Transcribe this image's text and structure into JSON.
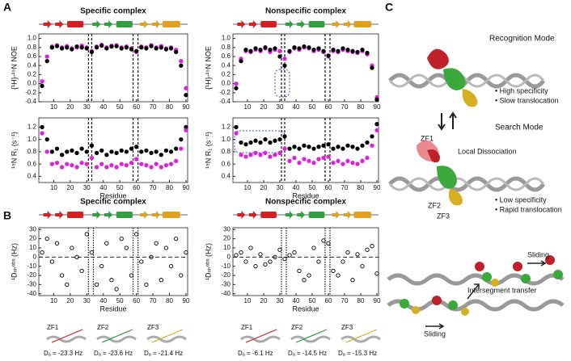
{
  "panel_labels": [
    "A",
    "B",
    "C"
  ],
  "chart_data": [
    {
      "type": "scatter",
      "title": "Specific complex",
      "ylabel": "{¹H}-¹⁵N NOE",
      "x": [
        3,
        6,
        9,
        12,
        15,
        18,
        21,
        24,
        27,
        30,
        33,
        36,
        39,
        42,
        45,
        48,
        51,
        54,
        57,
        60,
        63,
        66,
        69,
        72,
        75,
        78,
        81,
        84,
        87,
        90
      ],
      "series": [
        {
          "color": "#e020e0",
          "filled": true,
          "values": [
            0.05,
            0.6,
            0.82,
            0.85,
            0.8,
            0.83,
            0.78,
            0.8,
            0.84,
            0.8,
            0.72,
            0.82,
            0.86,
            0.8,
            0.84,
            0.85,
            0.8,
            0.82,
            0.78,
            0.7,
            0.82,
            0.8,
            0.85,
            0.8,
            0.83,
            0.78,
            0.8,
            0.75,
            0.5,
            -0.1
          ]
        },
        {
          "color": "#000000",
          "filled": true,
          "values": [
            -0.05,
            0.5,
            0.8,
            0.83,
            0.78,
            0.8,
            0.76,
            0.82,
            0.8,
            0.78,
            0.7,
            0.8,
            0.84,
            0.78,
            0.82,
            0.83,
            0.78,
            0.8,
            0.76,
            0.72,
            0.8,
            0.78,
            0.83,
            0.78,
            0.8,
            0.76,
            0.78,
            0.7,
            0.4,
            -0.25
          ]
        }
      ],
      "xlim": [
        1,
        91
      ],
      "xticks": [
        10,
        20,
        30,
        40,
        50,
        60,
        70,
        80,
        90
      ],
      "ylim": [
        -0.4,
        1.1
      ],
      "yticks": [
        -0.4,
        -0.2,
        {
          "value": 0,
          "label": "0.0"
        },
        0.2,
        0.4,
        0.6,
        0.8,
        {
          "value": 1,
          "label": "1.0"
        }
      ],
      "vlines": [
        31,
        33,
        58,
        61
      ],
      "vline_style": "dashed"
    },
    {
      "type": "scatter",
      "ylabel": "¹⁵N R₁ (s⁻¹)",
      "xlabel": "Residue",
      "x": [
        3,
        6,
        9,
        12,
        15,
        18,
        21,
        24,
        27,
        30,
        33,
        36,
        39,
        42,
        45,
        48,
        51,
        54,
        57,
        60,
        63,
        66,
        69,
        72,
        75,
        78,
        81,
        84,
        87,
        90
      ],
      "series": [
        {
          "color": "#000000",
          "filled": true,
          "values": [
            1.2,
            1.0,
            0.8,
            0.85,
            0.75,
            0.8,
            0.82,
            0.78,
            0.85,
            0.8,
            0.9,
            0.78,
            0.82,
            0.75,
            0.8,
            0.78,
            0.82,
            0.8,
            0.85,
            0.88,
            0.8,
            0.82,
            0.78,
            0.8,
            0.75,
            0.82,
            0.8,
            0.85,
            1.0,
            1.2
          ]
        },
        {
          "color": "#e020e0",
          "filled": true,
          "values": [
            1.1,
            0.8,
            0.6,
            0.62,
            0.55,
            0.6,
            0.58,
            0.55,
            0.62,
            0.6,
            0.7,
            0.55,
            0.6,
            0.55,
            0.58,
            0.55,
            0.6,
            0.58,
            0.62,
            0.68,
            0.6,
            0.58,
            0.55,
            0.6,
            0.55,
            0.58,
            0.6,
            0.65,
            0.85,
            1.15
          ]
        }
      ],
      "xlim": [
        1,
        91
      ],
      "xticks": [
        10,
        20,
        30,
        40,
        50,
        60,
        70,
        80,
        90
      ],
      "ylim": [
        0.3,
        1.35
      ],
      "yticks": [
        0.4,
        0.6,
        0.8,
        {
          "value": 1,
          "label": "1.0"
        },
        1.2
      ],
      "vlines": [
        31,
        33,
        58,
        61
      ],
      "vline_style": "dashed"
    },
    {
      "type": "scatter",
      "title": "Nonspecific complex",
      "ylabel": "{¹H}-¹⁵N NOE",
      "x": [
        3,
        6,
        9,
        12,
        15,
        18,
        21,
        24,
        27,
        30,
        33,
        36,
        39,
        42,
        45,
        48,
        51,
        54,
        57,
        60,
        63,
        66,
        69,
        72,
        75,
        78,
        81,
        84,
        87,
        90
      ],
      "series": [
        {
          "color": "#e020e0",
          "filled": true,
          "values": [
            0.0,
            0.55,
            0.72,
            0.7,
            0.75,
            0.72,
            0.78,
            0.7,
            0.75,
            0.72,
            0.55,
            0.7,
            0.78,
            0.75,
            0.8,
            0.78,
            0.72,
            0.75,
            0.7,
            0.6,
            0.72,
            0.7,
            0.75,
            0.72,
            0.7,
            0.68,
            0.72,
            0.65,
            0.4,
            -0.3
          ]
        },
        {
          "color": "#000000",
          "filled": true,
          "values": [
            -0.1,
            0.5,
            0.75,
            0.72,
            0.78,
            0.75,
            0.8,
            0.75,
            0.78,
            0.6,
            0.4,
            0.72,
            0.8,
            0.78,
            0.82,
            0.8,
            0.75,
            0.78,
            0.72,
            0.62,
            0.75,
            0.72,
            0.78,
            0.75,
            0.72,
            0.7,
            0.75,
            0.68,
            0.35,
            -0.35
          ]
        }
      ],
      "xlim": [
        1,
        91
      ],
      "xticks": [
        10,
        20,
        30,
        40,
        50,
        60,
        70,
        80,
        90
      ],
      "ylim": [
        -0.4,
        1.1
      ],
      "yticks": [
        -0.4,
        -0.2,
        {
          "value": 0,
          "label": "0.0"
        },
        0.2,
        0.4,
        0.6,
        0.8,
        {
          "value": 1,
          "label": "1.0"
        }
      ],
      "vlines": [
        31,
        33,
        58,
        61
      ],
      "vline_style": "dashed"
    },
    {
      "type": "scatter",
      "ylabel": "¹⁵N R₁ (s⁻¹)",
      "xlabel": "Residue",
      "x": [
        3,
        6,
        9,
        12,
        15,
        18,
        21,
        24,
        27,
        30,
        33,
        36,
        39,
        42,
        45,
        48,
        51,
        54,
        57,
        60,
        63,
        66,
        69,
        72,
        75,
        78,
        81,
        84,
        87,
        90
      ],
      "series": [
        {
          "color": "#000000",
          "filled": true,
          "values": [
            1.2,
            0.95,
            0.92,
            0.95,
            0.98,
            0.95,
            1.0,
            0.95,
            0.98,
            1.0,
            1.05,
            0.85,
            0.88,
            0.85,
            0.9,
            0.88,
            0.85,
            0.88,
            0.9,
            0.92,
            0.85,
            0.88,
            0.85,
            0.9,
            0.88,
            0.85,
            0.9,
            0.95,
            1.05,
            1.25
          ]
        },
        {
          "color": "#e020e0",
          "filled": true,
          "values": [
            1.1,
            0.75,
            0.72,
            0.75,
            0.78,
            0.75,
            0.78,
            0.72,
            0.75,
            0.78,
            0.85,
            0.65,
            0.7,
            0.62,
            0.68,
            0.65,
            0.62,
            0.68,
            0.7,
            0.72,
            0.62,
            0.65,
            0.6,
            0.65,
            0.62,
            0.6,
            0.65,
            0.7,
            0.9,
            1.15
          ]
        }
      ],
      "xlim": [
        1,
        91
      ],
      "xticks": [
        10,
        20,
        30,
        40,
        50,
        60,
        70,
        80,
        90
      ],
      "ylim": [
        0.3,
        1.35
      ],
      "yticks": [
        0.4,
        0.6,
        0.8,
        {
          "value": 1,
          "label": "1.0"
        },
        1.2
      ],
      "vlines": [
        31,
        33,
        58,
        61
      ],
      "vline_style": "dashed"
    },
    {
      "type": "scatter",
      "title": "Specific complex",
      "ylabel": "¹Dₙₕᵒᵇˢ (Hz)",
      "xlabel": "Residue",
      "x": [
        3,
        6,
        9,
        12,
        15,
        18,
        21,
        24,
        27,
        30,
        33,
        36,
        39,
        42,
        45,
        48,
        51,
        54,
        57,
        60,
        63,
        66,
        69,
        72,
        75,
        78,
        81,
        84,
        87,
        90
      ],
      "series": [
        {
          "color": "#000000",
          "filled": false,
          "values": [
            5,
            20,
            -5,
            15,
            -20,
            -30,
            10,
            0,
            -15,
            25,
            5,
            -30,
            -10,
            15,
            -25,
            -35,
            20,
            10,
            -20,
            25,
            -5,
            -30,
            0,
            15,
            -25,
            10,
            -10,
            20,
            -20,
            5
          ]
        }
      ],
      "xlim": [
        1,
        91
      ],
      "xticks": [
        10,
        20,
        30,
        40,
        50,
        60,
        70,
        80,
        90
      ],
      "ylim": [
        -42,
        32
      ],
      "yticks": [
        -40,
        -30,
        -20,
        -10,
        0,
        10,
        20,
        30
      ],
      "hline": 0,
      "vlines": [
        31,
        34,
        58,
        61
      ],
      "vline_style": "dotted"
    },
    {
      "type": "scatter",
      "title": "Nonspecific complex",
      "ylabel": "¹Dₙₕᵒᵇˢ (Hz)",
      "xlabel": "Residue",
      "x": [
        3,
        6,
        9,
        12,
        15,
        18,
        21,
        24,
        27,
        30,
        33,
        36,
        39,
        42,
        45,
        48,
        51,
        54,
        57,
        60,
        63,
        66,
        69,
        72,
        75,
        78,
        81,
        84,
        87,
        90
      ],
      "series": [
        {
          "color": "#000000",
          "filled": false,
          "values": [
            2,
            5,
            -5,
            10,
            -10,
            3,
            -8,
            -5,
            0,
            8,
            -2,
            2,
            5,
            -15,
            -25,
            -20,
            10,
            -5,
            18,
            15,
            -15,
            -20,
            -5,
            5,
            -25,
            3,
            -10,
            8,
            12,
            -18
          ]
        }
      ],
      "xlim": [
        1,
        91
      ],
      "xticks": [
        10,
        20,
        30,
        40,
        50,
        60,
        70,
        80,
        90
      ],
      "ylim": [
        -42,
        32
      ],
      "yticks": [
        -40,
        -30,
        -20,
        -10,
        0,
        10,
        20,
        30
      ],
      "hline": 0,
      "vlines": [
        31,
        34,
        58,
        61
      ],
      "vline_style": "dotted"
    }
  ],
  "alignment": {
    "specific": {
      "labels": [
        "ZF1",
        "ZF2",
        "ZF3"
      ],
      "da": [
        "Dₐ = -23.3 Hz",
        "Dₐ = -23.6 Hz",
        "Dₐ = -21.4 Hz"
      ]
    },
    "nonspecific": {
      "labels": [
        "ZF1",
        "ZF2",
        "ZF3"
      ],
      "da": [
        "Dₐ = -6.1 Hz",
        "Dₐ = -14.5 Hz",
        "Dₐ = -15.3 Hz"
      ]
    }
  },
  "panel_c": {
    "recognition_title": "Recognition Mode",
    "recognition_points": [
      "• High specificity",
      "• Slow translocation"
    ],
    "search_title": "Search Mode",
    "search_labels": [
      "ZF1",
      "Local Dissociation",
      "ZF2",
      "ZF3"
    ],
    "search_points": [
      "• Low specificity",
      "• Rapid translocation"
    ],
    "transfer_labels": [
      "Sliding",
      "Intersegment transfer",
      "Sliding"
    ]
  }
}
